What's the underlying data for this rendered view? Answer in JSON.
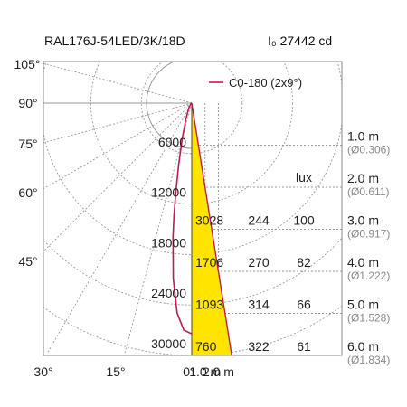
{
  "chart_data": {
    "type": "polar-line",
    "title": "RAL176J-54LED/3K/18D",
    "peak_intensity": {
      "symbol": "I₀",
      "value": "27442",
      "unit": "cd"
    },
    "legend": {
      "label": "C0-180 (2x9°)",
      "color": "#c8174f",
      "placement": "top-right"
    },
    "colors": {
      "curve": "#c8174f",
      "cone_fill": "#ffe400",
      "cone_edge": "#c8174f",
      "grid": "#9a9a9a"
    },
    "polar_angle_labels": [
      {
        "deg": 105,
        "text": "105°"
      },
      {
        "deg": 90,
        "text": "90°"
      },
      {
        "deg": 75,
        "text": "75°"
      },
      {
        "deg": 60,
        "text": "60°"
      },
      {
        "deg": 45,
        "text": "45°"
      },
      {
        "deg": 30,
        "text": "30°"
      },
      {
        "deg": 15,
        "text": "15°"
      },
      {
        "deg": 0,
        "text": "0°"
      }
    ],
    "intensity_ticks": [
      {
        "value": 6000,
        "text": "6000"
      },
      {
        "value": 12000,
        "text": "12000"
      },
      {
        "value": 18000,
        "text": "18000"
      },
      {
        "value": 24000,
        "text": "24000"
      },
      {
        "value": 30000,
        "text": "30000"
      }
    ],
    "intensity_max": 30000,
    "curve": {
      "name": "C0-180",
      "points": [
        {
          "angle": 0,
          "cd": 27442
        },
        {
          "angle": 2,
          "cd": 27000
        },
        {
          "angle": 4,
          "cd": 25000
        },
        {
          "angle": 6,
          "cd": 21000
        },
        {
          "angle": 8,
          "cd": 16000
        },
        {
          "angle": 9,
          "cd": 13500
        },
        {
          "angle": 10,
          "cd": 11000
        },
        {
          "angle": 12,
          "cd": 7500
        },
        {
          "angle": 15,
          "cd": 4300
        },
        {
          "angle": 20,
          "cd": 2000
        },
        {
          "angle": 30,
          "cd": 700
        },
        {
          "angle": 45,
          "cd": 200
        },
        {
          "angle": 60,
          "cd": 60
        },
        {
          "angle": 75,
          "cd": 15
        },
        {
          "angle": 90,
          "cd": 0
        }
      ]
    },
    "distance_axis": {
      "ticks": [
        "1.0 m",
        "2.0 m"
      ],
      "max_m": 6.0
    },
    "beam_half_angle": 9,
    "lux_header": "lux",
    "rows": [
      {
        "distance_m": 1.0,
        "distance": "1.0 m",
        "diameter": "(Ø0.306)"
      },
      {
        "distance_m": 2.0,
        "distance": "2.0 m",
        "diameter": "(Ø0.611)"
      },
      {
        "distance_m": 3.0,
        "distance": "3.0 m",
        "diameter": "(Ø0.917)",
        "c1": "3028",
        "c2": "244",
        "lux": "100"
      },
      {
        "distance_m": 4.0,
        "distance": "4.0 m",
        "diameter": "(Ø1.222)",
        "c1": "1706",
        "c2": "270",
        "lux": "82"
      },
      {
        "distance_m": 5.0,
        "distance": "5.0 m",
        "diameter": "(Ø1.528)",
        "c1": "1093",
        "c2": "314",
        "lux": "66"
      },
      {
        "distance_m": 6.0,
        "distance": "6.0 m",
        "diameter": "(Ø1.834)",
        "c1": "760",
        "c2": "322",
        "lux": "61"
      }
    ]
  }
}
